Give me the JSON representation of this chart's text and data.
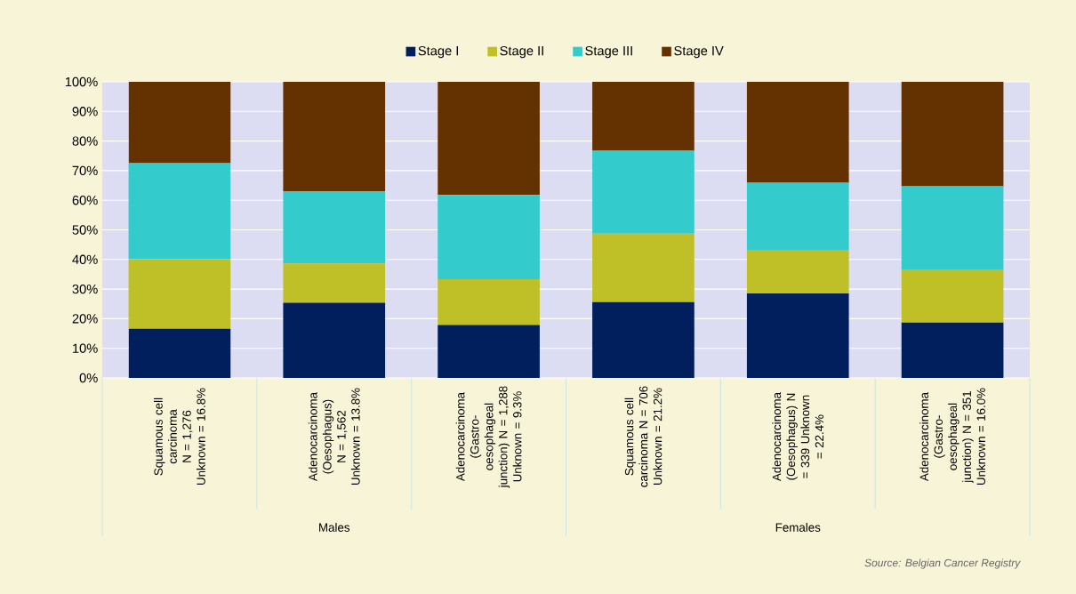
{
  "chart_data": {
    "type": "bar",
    "stacked": true,
    "categories": [
      "Squamous cell carcinoma N = 1,276 Unknown = 16.8%",
      "Adenocarcinoma (Oesophagus) N = 1,562 Unknown = 13.8%",
      "Adenocarcinoma (Gastro-oesophageal junction) N = 1,288 Unknown = 9.3%",
      "Squamous cell carcinoma N = 706 Unknown = 21.2%",
      "Adenocarcinoma (Oesophagus) N = 339 Unknown = 22.4%",
      "Adenocarcinoma (Gastro-oesophageal junction) N = 351 Unknown = 16.0%"
    ],
    "series": [
      {
        "name": "Stage I",
        "color": "#001f5c",
        "values": [
          16.6,
          25.4,
          17.9,
          25.6,
          28.5,
          18.7
        ]
      },
      {
        "name": "Stage II",
        "color": "#bfbf28",
        "values": [
          23.5,
          13.3,
          15.4,
          23.1,
          14.5,
          17.7
        ]
      },
      {
        "name": "Stage III",
        "color": "#33cbcc",
        "values": [
          32.4,
          24.3,
          28.5,
          28.0,
          22.9,
          28.3
        ]
      },
      {
        "name": "Stage IV",
        "color": "#643200",
        "values": [
          27.5,
          37.0,
          38.2,
          23.3,
          34.1,
          35.3
        ]
      }
    ],
    "ylim": [
      0,
      100
    ],
    "yticks": [
      {
        "value": 0,
        "label": "0%"
      },
      {
        "value": 10,
        "label": "10%"
      },
      {
        "value": 20,
        "label": "20%"
      },
      {
        "value": 30,
        "label": "30%"
      },
      {
        "value": 40,
        "label": "40%"
      },
      {
        "value": 50,
        "label": "50%"
      },
      {
        "value": 60,
        "label": "60%"
      },
      {
        "value": 70,
        "label": "70%"
      },
      {
        "value": 80,
        "label": "80%"
      },
      {
        "value": 90,
        "label": "90%"
      },
      {
        "value": 100,
        "label": "100%"
      }
    ],
    "grid": "y",
    "legend": "top",
    "annotations": [
      "Males",
      "Females",
      "Source: Belgian Cancer Registry"
    ]
  }
}
